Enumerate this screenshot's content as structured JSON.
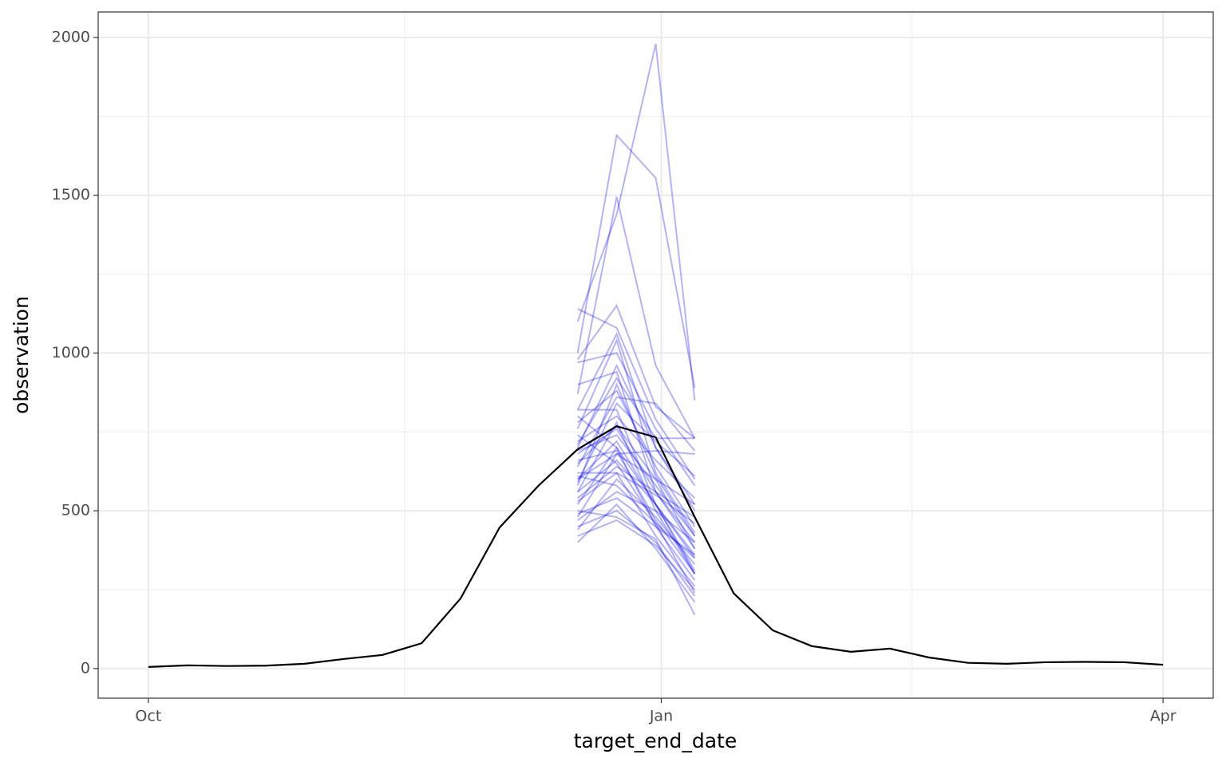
{
  "chart_data": {
    "type": "line",
    "x_label": "target_end_date",
    "y_label": "observation",
    "xlim": [
      "2022-09-22",
      "2023-04-10"
    ],
    "xticks": [
      {
        "value": "2022-10-01",
        "label": "Oct"
      },
      {
        "value": "2023-01-01",
        "label": "Jan"
      },
      {
        "value": "2023-04-01",
        "label": "Apr"
      }
    ],
    "x_minor_ticks": [
      "2022-11-16",
      "2023-02-15"
    ],
    "ylim": [
      -94,
      2081
    ],
    "yticks": [
      0,
      500,
      1000,
      1500,
      2000
    ],
    "y_minor_ticks": [
      250,
      750,
      1250,
      1750
    ],
    "grid": true,
    "forecast_alpha": 0.3,
    "series": [
      {
        "color": "#000000",
        "x": [
          "2022-10-01",
          "2022-10-08",
          "2022-10-15",
          "2022-10-22",
          "2022-10-29",
          "2022-11-05",
          "2022-11-12",
          "2022-11-19",
          "2022-11-26",
          "2022-12-03",
          "2022-12-10",
          "2022-12-17",
          "2022-12-24",
          "2022-12-31",
          "2023-01-07",
          "2023-01-14",
          "2023-01-21",
          "2023-01-28",
          "2023-02-04",
          "2023-02-11",
          "2023-02-18",
          "2023-02-25",
          "2023-03-04",
          "2023-03-11",
          "2023-03-18",
          "2023-03-25",
          "2023-04-01"
        ],
        "values": [
          5,
          10,
          8,
          9,
          15,
          30,
          43,
          80,
          222,
          447,
          580,
          695,
          768,
          733,
          480,
          238,
          121,
          71,
          53,
          63,
          35,
          18,
          15,
          20,
          21,
          20,
          12
        ]
      },
      {
        "color": "#0000ff",
        "forecast": true,
        "x": [
          "2022-12-17",
          "2022-12-24",
          "2022-12-31",
          "2023-01-07"
        ],
        "values": [
          1000,
          1690,
          1555,
          890
        ]
      },
      {
        "color": "#0000ff",
        "forecast": true,
        "x": [
          "2022-12-17",
          "2022-12-24",
          "2022-12-31",
          "2023-01-07"
        ],
        "values": [
          1100,
          1440,
          1980,
          850
        ]
      },
      {
        "color": "#0000ff",
        "forecast": true,
        "x": [
          "2022-12-17",
          "2022-12-24",
          "2022-12-31",
          "2023-01-07"
        ],
        "values": [
          870,
          1495,
          960,
          730
        ]
      },
      {
        "color": "#0000ff",
        "forecast": true,
        "x": [
          "2022-12-17",
          "2022-12-24",
          "2022-12-31",
          "2023-01-07"
        ],
        "values": [
          1140,
          1080,
          790,
          600
        ]
      },
      {
        "color": "#0000ff",
        "forecast": true,
        "x": [
          "2022-12-17",
          "2022-12-24",
          "2022-12-31",
          "2023-01-07"
        ],
        "values": [
          980,
          1150,
          830,
          730
        ]
      },
      {
        "color": "#0000ff",
        "forecast": true,
        "x": [
          "2022-12-17",
          "2022-12-24",
          "2022-12-31",
          "2023-01-07"
        ],
        "values": [
          820,
          1060,
          700,
          520
        ]
      },
      {
        "color": "#0000ff",
        "forecast": true,
        "x": [
          "2022-12-17",
          "2022-12-24",
          "2022-12-31",
          "2023-01-07"
        ],
        "values": [
          760,
          1040,
          620,
          430
        ]
      },
      {
        "color": "#0000ff",
        "forecast": true,
        "x": [
          "2022-12-17",
          "2022-12-24",
          "2022-12-31",
          "2023-01-07"
        ],
        "values": [
          900,
          940,
          560,
          380
        ]
      },
      {
        "color": "#0000ff",
        "forecast": true,
        "x": [
          "2022-12-17",
          "2022-12-24",
          "2022-12-31",
          "2023-01-07"
        ],
        "values": [
          700,
          960,
          700,
          500
        ]
      },
      {
        "color": "#0000ff",
        "forecast": true,
        "x": [
          "2022-12-17",
          "2022-12-24",
          "2022-12-31",
          "2023-01-07"
        ],
        "values": [
          640,
          860,
          840,
          690
        ]
      },
      {
        "color": "#0000ff",
        "forecast": true,
        "x": [
          "2022-12-17",
          "2022-12-24",
          "2022-12-31",
          "2023-01-07"
        ],
        "values": [
          580,
          900,
          610,
          420
        ]
      },
      {
        "color": "#0000ff",
        "forecast": true,
        "x": [
          "2022-12-17",
          "2022-12-24",
          "2022-12-31",
          "2023-01-07"
        ],
        "values": [
          820,
          820,
          520,
          350
        ]
      },
      {
        "color": "#0000ff",
        "forecast": true,
        "x": [
          "2022-12-17",
          "2022-12-24",
          "2022-12-31",
          "2023-01-07"
        ],
        "values": [
          560,
          780,
          500,
          300
        ]
      },
      {
        "color": "#0000ff",
        "forecast": true,
        "x": [
          "2022-12-17",
          "2022-12-24",
          "2022-12-31",
          "2023-01-07"
        ],
        "values": [
          680,
          760,
          560,
          400
        ]
      },
      {
        "color": "#0000ff",
        "forecast": true,
        "x": [
          "2022-12-17",
          "2022-12-24",
          "2022-12-31",
          "2023-01-07"
        ],
        "values": [
          520,
          700,
          450,
          280
        ]
      },
      {
        "color": "#0000ff",
        "forecast": true,
        "x": [
          "2022-12-17",
          "2022-12-24",
          "2022-12-31",
          "2023-01-07"
        ],
        "values": [
          600,
          720,
          520,
          360
        ]
      },
      {
        "color": "#0000ff",
        "forecast": true,
        "x": [
          "2022-12-17",
          "2022-12-24",
          "2022-12-31",
          "2023-01-07"
        ],
        "values": [
          740,
          650,
          460,
          240
        ]
      },
      {
        "color": "#0000ff",
        "forecast": true,
        "x": [
          "2022-12-17",
          "2022-12-24",
          "2022-12-31",
          "2023-01-07"
        ],
        "values": [
          480,
          680,
          600,
          520
        ]
      },
      {
        "color": "#0000ff",
        "forecast": true,
        "x": [
          "2022-12-17",
          "2022-12-24",
          "2022-12-31",
          "2023-01-07"
        ],
        "values": [
          440,
          600,
          480,
          330
        ]
      },
      {
        "color": "#0000ff",
        "forecast": true,
        "x": [
          "2022-12-17",
          "2022-12-24",
          "2022-12-31",
          "2023-01-07"
        ],
        "values": [
          400,
          520,
          380,
          210
        ]
      },
      {
        "color": "#0000ff",
        "forecast": true,
        "x": [
          "2022-12-17",
          "2022-12-24",
          "2022-12-31",
          "2023-01-07"
        ],
        "values": [
          620,
          620,
          420,
          260
        ]
      },
      {
        "color": "#0000ff",
        "forecast": true,
        "x": [
          "2022-12-17",
          "2022-12-24",
          "2022-12-31",
          "2023-01-07"
        ],
        "values": [
          540,
          640,
          560,
          480
        ]
      },
      {
        "color": "#0000ff",
        "forecast": true,
        "x": [
          "2022-12-17",
          "2022-12-24",
          "2022-12-31",
          "2023-01-07"
        ],
        "values": [
          470,
          560,
          500,
          400
        ]
      },
      {
        "color": "#0000ff",
        "forecast": true,
        "x": [
          "2022-12-17",
          "2022-12-24",
          "2022-12-31",
          "2023-01-07"
        ],
        "values": [
          720,
          800,
          660,
          540
        ]
      },
      {
        "color": "#0000ff",
        "forecast": true,
        "x": [
          "2022-12-17",
          "2022-12-24",
          "2022-12-31",
          "2023-01-07"
        ],
        "values": [
          660,
          690,
          470,
          300
        ]
      },
      {
        "color": "#0000ff",
        "forecast": true,
        "x": [
          "2022-12-17",
          "2022-12-24",
          "2022-12-31",
          "2023-01-07"
        ],
        "values": [
          500,
          480,
          410,
          170
        ]
      },
      {
        "color": "#0000ff",
        "forecast": true,
        "x": [
          "2022-12-17",
          "2022-12-24",
          "2022-12-31",
          "2023-01-07"
        ],
        "values": [
          590,
          840,
          720,
          610
        ]
      },
      {
        "color": "#0000ff",
        "forecast": true,
        "x": [
          "2022-12-17",
          "2022-12-24",
          "2022-12-31",
          "2023-01-07"
        ],
        "values": [
          780,
          880,
          640,
          450
        ]
      },
      {
        "color": "#0000ff",
        "forecast": true,
        "x": [
          "2022-12-17",
          "2022-12-24",
          "2022-12-31",
          "2023-01-07"
        ],
        "values": [
          450,
          500,
          400,
          230
        ]
      },
      {
        "color": "#0000ff",
        "forecast": true,
        "x": [
          "2022-12-17",
          "2022-12-24",
          "2022-12-31",
          "2023-01-07"
        ],
        "values": [
          690,
          740,
          580,
          420
        ]
      },
      {
        "color": "#0000ff",
        "forecast": true,
        "x": [
          "2022-12-17",
          "2022-12-24",
          "2022-12-31",
          "2023-01-07"
        ],
        "values": [
          610,
          580,
          460,
          350
        ]
      },
      {
        "color": "#0000ff",
        "forecast": true,
        "x": [
          "2022-12-17",
          "2022-12-24",
          "2022-12-31",
          "2023-01-07"
        ],
        "values": [
          530,
          620,
          550,
          460
        ]
      },
      {
        "color": "#0000ff",
        "forecast": true,
        "x": [
          "2022-12-17",
          "2022-12-24",
          "2022-12-31",
          "2023-01-07"
        ],
        "values": [
          970,
          1000,
          760,
          580
        ]
      },
      {
        "color": "#0000ff",
        "forecast": true,
        "x": [
          "2022-12-17",
          "2022-12-24",
          "2022-12-31",
          "2023-01-07"
        ],
        "values": [
          420,
          470,
          390,
          250
        ]
      },
      {
        "color": "#0000ff",
        "forecast": true,
        "x": [
          "2022-12-17",
          "2022-12-24",
          "2022-12-31",
          "2023-01-07"
        ],
        "values": [
          650,
          770,
          600,
          380
        ]
      },
      {
        "color": "#0000ff",
        "forecast": true,
        "x": [
          "2022-12-17",
          "2022-12-24",
          "2022-12-31",
          "2023-01-07"
        ],
        "values": [
          710,
          920,
          730,
          730
        ]
      },
      {
        "color": "#0000ff",
        "forecast": true,
        "x": [
          "2022-12-17",
          "2022-12-24",
          "2022-12-31",
          "2023-01-07"
        ],
        "values": [
          560,
          660,
          520,
          310
        ]
      },
      {
        "color": "#0000ff",
        "forecast": true,
        "x": [
          "2022-12-17",
          "2022-12-24",
          "2022-12-31",
          "2023-01-07"
        ],
        "values": [
          490,
          540,
          450,
          360
        ]
      },
      {
        "color": "#0000ff",
        "forecast": true,
        "x": [
          "2022-12-17",
          "2022-12-24",
          "2022-12-31",
          "2023-01-07"
        ],
        "values": [
          800,
          700,
          520,
          300
        ]
      },
      {
        "color": "#0000ff",
        "forecast": true,
        "x": [
          "2022-12-17",
          "2022-12-24",
          "2022-12-31",
          "2023-01-07"
        ],
        "values": [
          600,
          680,
          690,
          680
        ]
      }
    ]
  }
}
